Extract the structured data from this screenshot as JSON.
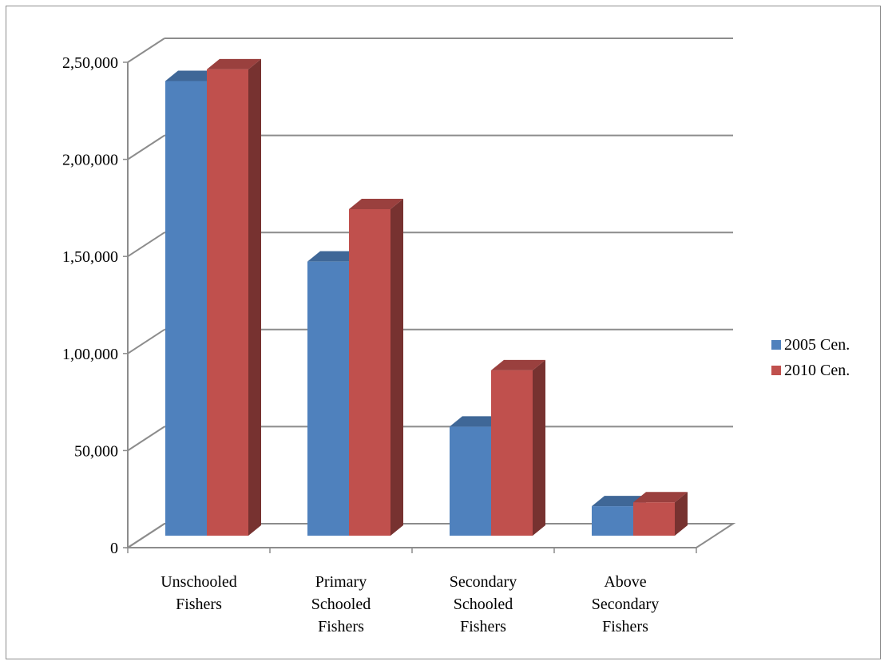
{
  "chart_data": {
    "type": "bar",
    "style": "3d-clustered-column",
    "categories": [
      [
        "Unschooled",
        "Fishers"
      ],
      [
        "Primary",
        "Schooled",
        "Fishers"
      ],
      [
        "Secondary",
        "Schooled",
        "Fishers"
      ],
      [
        "Above",
        "Secondary",
        "Fishers"
      ]
    ],
    "series": [
      {
        "name": "2005 Cen.",
        "color": "#4F81BD",
        "values": [
          235000,
          142000,
          57000,
          16000
        ]
      },
      {
        "name": "2010 Cen.",
        "color": "#C0504D",
        "values": [
          241000,
          169000,
          86000,
          18000
        ]
      }
    ],
    "y_ticks": [
      {
        "value": 0,
        "label": "0"
      },
      {
        "value": 50000,
        "label": "50,000"
      },
      {
        "value": 100000,
        "label": "1,00,000"
      },
      {
        "value": 150000,
        "label": "1,50,000"
      },
      {
        "value": 200000,
        "label": "2,00,000"
      },
      {
        "value": 250000,
        "label": "2,50,000"
      }
    ],
    "ylim": [
      0,
      250000
    ],
    "grid": true,
    "legend_position": "right",
    "title": "",
    "xlabel": "",
    "ylabel": ""
  }
}
